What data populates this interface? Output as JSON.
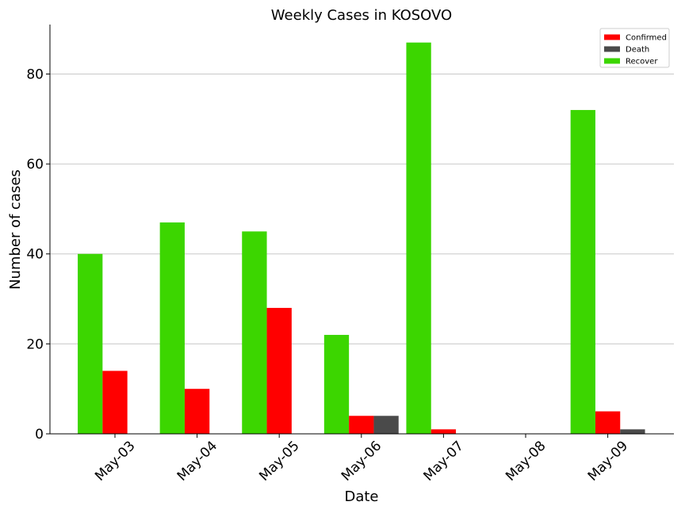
{
  "chart_data": {
    "type": "bar",
    "title": "Weekly Cases in KOSOVO",
    "xlabel": "Date",
    "ylabel": "Number of cases",
    "categories": [
      "May-03",
      "May-04",
      "May-05",
      "May-06",
      "May-07",
      "May-08",
      "May-09"
    ],
    "series": [
      {
        "name": "Recover",
        "color": "#3cd600",
        "values": [
          40,
          47,
          45,
          22,
          87,
          0,
          72
        ]
      },
      {
        "name": "Confirmed",
        "color": "#ff0000",
        "values": [
          14,
          10,
          28,
          4,
          1,
          0,
          5
        ]
      },
      {
        "name": "Death",
        "color": "#4a4a4a",
        "values": [
          0,
          0,
          0,
          4,
          0,
          0,
          1
        ]
      }
    ],
    "legend_order": [
      "Confirmed",
      "Death",
      "Recover"
    ],
    "ylim": [
      0,
      91
    ],
    "yticks": [
      0,
      20,
      40,
      60,
      80
    ],
    "grid": "horizontal",
    "legend_position": "top-right"
  }
}
